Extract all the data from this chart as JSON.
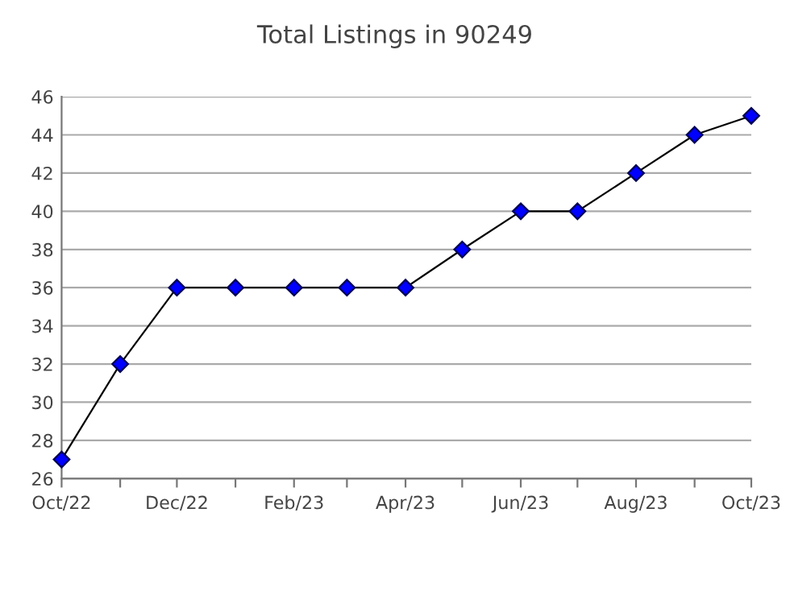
{
  "chart_data": {
    "type": "line",
    "title": "Total Listings in 90249",
    "x": [
      "2022-10",
      "2022-11",
      "2022-12",
      "2023-01",
      "2023-02",
      "2023-03",
      "2023-04",
      "2023-05",
      "2023-06",
      "2023-07",
      "2023-08",
      "2023-09",
      "2023-10"
    ],
    "series": [
      {
        "color": "#0000ff",
        "values": [
          27,
          32,
          36,
          36,
          36,
          36,
          36,
          38,
          40,
          40,
          42,
          44,
          45
        ]
      }
    ],
    "marker": "diamond",
    "line_style": "solid",
    "grid": "y",
    "xlim": [
      "2022-10",
      "2023-10"
    ],
    "xticks": [
      {
        "value": "2022-10",
        "label": "Oct/22"
      },
      {
        "value": "2022-11",
        "label": null
      },
      {
        "value": "2022-12",
        "label": "Dec/22"
      },
      {
        "value": "2023-01",
        "label": null
      },
      {
        "value": "2023-02",
        "label": "Feb/23"
      },
      {
        "value": "2023-03",
        "label": null
      },
      {
        "value": "2023-04",
        "label": "Apr/23"
      },
      {
        "value": "2023-05",
        "label": null
      },
      {
        "value": "2023-06",
        "label": "Jun/23"
      },
      {
        "value": "2023-07",
        "label": null
      },
      {
        "value": "2023-08",
        "label": "Aug/23"
      },
      {
        "value": "2023-09",
        "label": null
      },
      {
        "value": "2023-10",
        "label": "Oct/23"
      }
    ],
    "ylim": [
      26,
      46
    ],
    "yticks": [
      26,
      28,
      30,
      32,
      34,
      36,
      38,
      40,
      42,
      44,
      46
    ]
  }
}
